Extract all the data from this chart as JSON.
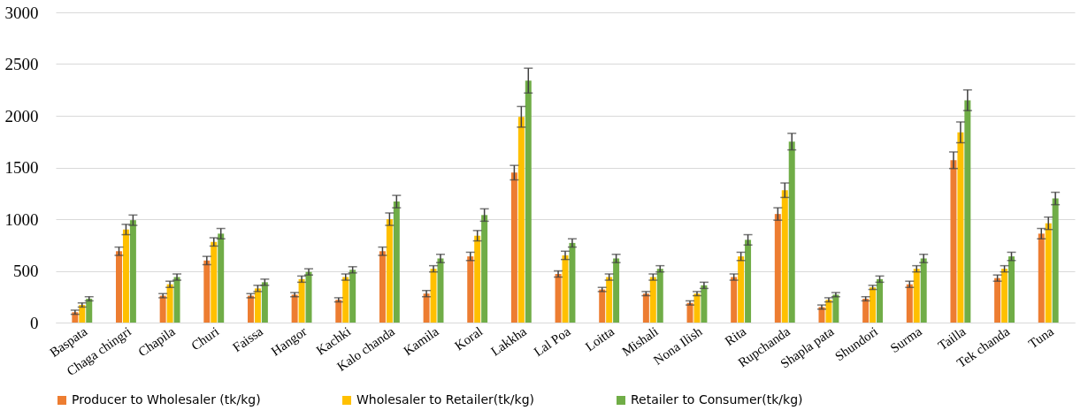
{
  "chart_data": {
    "type": "bar",
    "categories": [
      "Baspata",
      "Chaga chingri",
      "Chapila",
      "Churi",
      "Faissa",
      "Hangor",
      "Kachki",
      "Kalo chanda",
      "Kamila",
      "Koral",
      "Lakkha",
      "Lal Poa",
      "Loitta",
      "Mishali",
      "Nona Ilish",
      "Rita",
      "Rupchanda",
      "Shapla pata",
      "Shundori",
      "Surma",
      "Tailla",
      "Tek chanda",
      "Tuna"
    ],
    "series": [
      {
        "name": "Producer to Wholesaler (tk/kg)",
        "color": "#ed7d31",
        "values": [
          100,
          690,
          260,
          600,
          260,
          270,
          220,
          690,
          280,
          640,
          1450,
          470,
          320,
          280,
          190,
          440,
          1050,
          150,
          230,
          370,
          1570,
          430,
          860
        ],
        "errors": [
          20,
          40,
          20,
          40,
          20,
          20,
          20,
          40,
          30,
          40,
          70,
          30,
          20,
          20,
          20,
          30,
          60,
          20,
          20,
          30,
          80,
          30,
          50
        ]
      },
      {
        "name": "Wholesaler to Retailer(tk/kg)",
        "color": "#ffc000",
        "values": [
          170,
          900,
          370,
          780,
          330,
          420,
          440,
          1000,
          520,
          840,
          1990,
          650,
          440,
          440,
          280,
          640,
          1280,
          220,
          340,
          520,
          1840,
          520,
          960
        ],
        "errors": [
          20,
          50,
          30,
          40,
          30,
          30,
          30,
          60,
          30,
          50,
          100,
          40,
          30,
          30,
          20,
          40,
          70,
          20,
          20,
          30,
          100,
          30,
          60
        ]
      },
      {
        "name": "Retailer to Consumer(tk/kg)",
        "color": "#70ad47",
        "values": [
          230,
          990,
          440,
          860,
          390,
          490,
          510,
          1170,
          620,
          1040,
          2340,
          770,
          620,
          520,
          360,
          800,
          1750,
          270,
          420,
          620,
          2150,
          640,
          1200
        ],
        "errors": [
          20,
          50,
          30,
          50,
          30,
          30,
          30,
          60,
          40,
          60,
          120,
          40,
          40,
          30,
          30,
          50,
          80,
          20,
          30,
          40,
          100,
          40,
          60
        ]
      }
    ],
    "ylim": [
      0,
      3000
    ],
    "yticks": [
      0,
      500,
      1000,
      1500,
      2000,
      2500,
      3000
    ],
    "grid": "y",
    "legend": "bottom"
  }
}
